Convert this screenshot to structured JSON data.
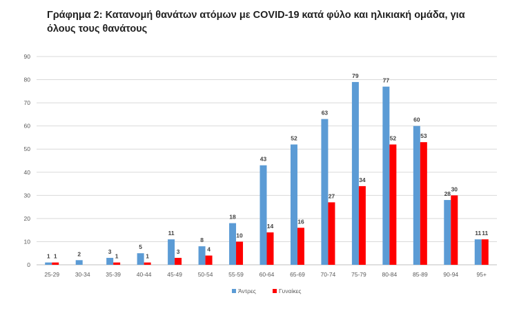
{
  "chart_data": {
    "type": "bar",
    "title_line1": "Γράφημα 2: Κατανομή θανάτων ατόμων με COVID-19 κατά φύλο και ηλικιακή ομάδα, για",
    "title_line2": "όλους τους θανάτους",
    "categories": [
      "25-29",
      "30-34",
      "35-39",
      "40-44",
      "45-49",
      "50-54",
      "55-59",
      "60-64",
      "65-69",
      "70-74",
      "75-79",
      "80-84",
      "85-89",
      "90-94",
      "95+"
    ],
    "series": [
      {
        "name": "Άντρες",
        "color": "#5b9bd5",
        "values": [
          1,
          2,
          3,
          5,
          11,
          8,
          18,
          43,
          52,
          63,
          79,
          77,
          60,
          28,
          11
        ]
      },
      {
        "name": "Γυναίκες",
        "color": "#ff0000",
        "values": [
          1,
          null,
          1,
          1,
          3,
          4,
          10,
          14,
          16,
          27,
          34,
          52,
          53,
          30,
          11
        ]
      }
    ],
    "ylim": [
      0,
      90
    ],
    "yticks": [
      "0",
      "10",
      "20",
      "30",
      "40",
      "50",
      "60",
      "70",
      "80",
      "90"
    ],
    "grid": true,
    "legend": "bottom"
  }
}
